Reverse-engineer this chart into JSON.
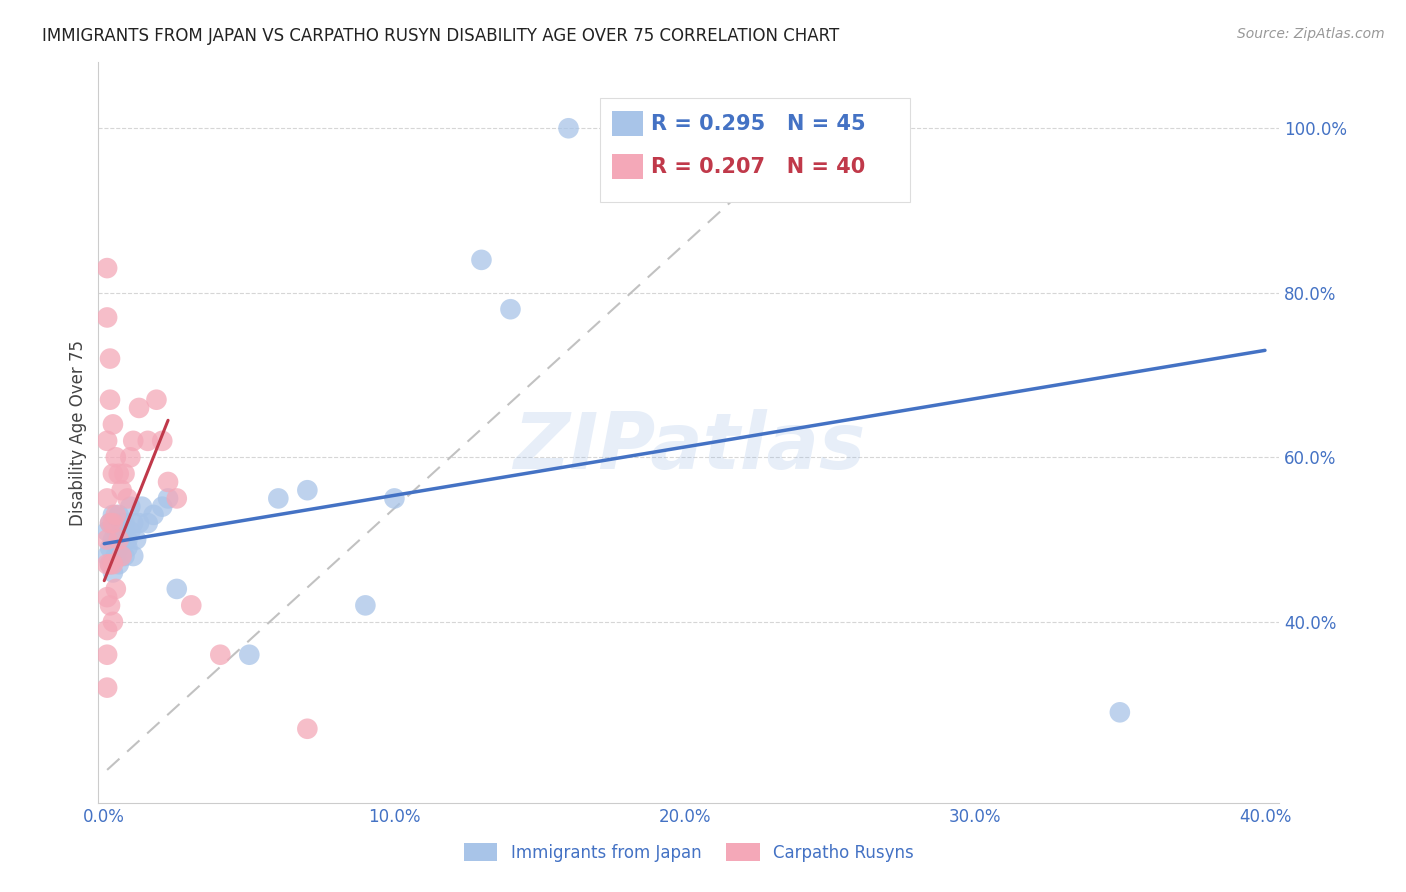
{
  "title": "IMMIGRANTS FROM JAPAN VS CARPATHO RUSYN DISABILITY AGE OVER 75 CORRELATION CHART",
  "source": "Source: ZipAtlas.com",
  "ylabel": "Disability Age Over 75",
  "legend_label1": "Immigrants from Japan",
  "legend_label2": "Carpatho Rusyns",
  "R1": 0.295,
  "N1": 45,
  "R2": 0.207,
  "N2": 40,
  "xlim": [
    -0.002,
    0.405
  ],
  "ylim": [
    0.18,
    1.08
  ],
  "xticks": [
    0.0,
    0.1,
    0.2,
    0.3,
    0.4
  ],
  "yticks": [
    0.4,
    0.6,
    0.8,
    1.0
  ],
  "xticklabels": [
    "0.0%",
    "10.0%",
    "20.0%",
    "30.0%",
    "40.0%"
  ],
  "yticklabels": [
    "40.0%",
    "60.0%",
    "80.0%",
    "100.0%"
  ],
  "color_japan": "#a8c4e8",
  "color_rusyn": "#f4a8b8",
  "color_japan_line": "#4472c4",
  "color_rusyn_line": "#c0394a",
  "background": "#ffffff",
  "grid_color": "#cccccc",
  "watermark": "ZIPatlas",
  "axis_color": "#4472c4",
  "japan_x": [
    0.001,
    0.001,
    0.002,
    0.002,
    0.002,
    0.003,
    0.003,
    0.003,
    0.004,
    0.004,
    0.004,
    0.005,
    0.005,
    0.005,
    0.006,
    0.006,
    0.007,
    0.007,
    0.007,
    0.008,
    0.008,
    0.009,
    0.009,
    0.01,
    0.01,
    0.011,
    0.012,
    0.013,
    0.015,
    0.017,
    0.02,
    0.022,
    0.025,
    0.05,
    0.06,
    0.07,
    0.09,
    0.1,
    0.13,
    0.14,
    0.16,
    0.19,
    0.2,
    0.21,
    0.35
  ],
  "japan_y": [
    0.51,
    0.48,
    0.52,
    0.49,
    0.47,
    0.5,
    0.53,
    0.46,
    0.51,
    0.48,
    0.5,
    0.53,
    0.47,
    0.49,
    0.52,
    0.5,
    0.51,
    0.48,
    0.52,
    0.5,
    0.49,
    0.54,
    0.51,
    0.52,
    0.48,
    0.5,
    0.52,
    0.54,
    0.52,
    0.53,
    0.54,
    0.55,
    0.44,
    0.36,
    0.55,
    0.56,
    0.42,
    0.55,
    0.84,
    0.78,
    1.0,
    1.0,
    1.0,
    1.0,
    0.29
  ],
  "rusyn_x": [
    0.001,
    0.001,
    0.001,
    0.001,
    0.001,
    0.001,
    0.001,
    0.001,
    0.001,
    0.001,
    0.002,
    0.002,
    0.002,
    0.002,
    0.002,
    0.003,
    0.003,
    0.003,
    0.003,
    0.003,
    0.004,
    0.004,
    0.004,
    0.005,
    0.005,
    0.006,
    0.006,
    0.007,
    0.008,
    0.009,
    0.01,
    0.012,
    0.015,
    0.018,
    0.02,
    0.022,
    0.025,
    0.03,
    0.04,
    0.07
  ],
  "rusyn_y": [
    0.83,
    0.77,
    0.62,
    0.55,
    0.5,
    0.47,
    0.43,
    0.39,
    0.36,
    0.32,
    0.72,
    0.67,
    0.52,
    0.47,
    0.42,
    0.64,
    0.58,
    0.52,
    0.47,
    0.4,
    0.6,
    0.53,
    0.44,
    0.58,
    0.5,
    0.56,
    0.48,
    0.58,
    0.55,
    0.6,
    0.62,
    0.66,
    0.62,
    0.67,
    0.62,
    0.57,
    0.55,
    0.42,
    0.36,
    0.27
  ],
  "blue_line_y0": 0.495,
  "blue_line_y1": 0.73,
  "pink_line_x0": 0.0,
  "pink_line_y0": 0.45,
  "pink_line_x1": 0.022,
  "pink_line_y1": 0.645,
  "gray_line_x0": 0.001,
  "gray_line_y0": 0.22,
  "gray_line_x1": 0.25,
  "gray_line_y1": 1.02
}
